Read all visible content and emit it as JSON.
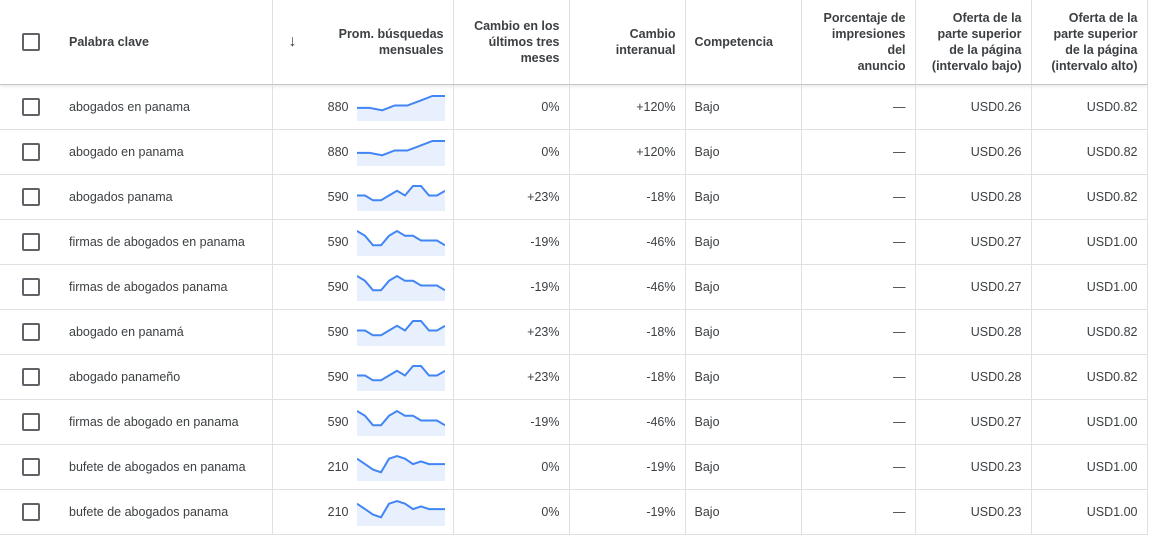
{
  "headers": {
    "keyword": "Palabra clave",
    "avg_searches": [
      "Prom. búsquedas",
      "mensuales"
    ],
    "three_month": [
      "Cambio en los",
      "últimos tres",
      "meses"
    ],
    "yoy": [
      "Cambio",
      "interanual"
    ],
    "competition": "Competencia",
    "impression_share": [
      "Porcentaje de",
      "impresiones del",
      "anuncio"
    ],
    "bid_low": [
      "Oferta de la",
      "parte superior",
      "de la página",
      "(intervalo bajo)"
    ],
    "bid_high": [
      "Oferta de la",
      "parte superior",
      "de la página",
      "(intervalo alto)"
    ]
  },
  "icons": {
    "sort": "arrow-down-icon",
    "checkbox": "checkbox-icon"
  },
  "colors": {
    "sparkline_line": "#4285f4",
    "sparkline_fill": "#e8f0fe"
  },
  "rows": [
    {
      "keyword": "abogados en panama",
      "avg": "880",
      "trend": [
        3,
        3,
        2,
        4,
        4,
        6,
        8,
        8
      ],
      "three_month": "0%",
      "yoy": "+120%",
      "competition": "Bajo",
      "impression_share": "—",
      "bid_low": "USD0.26",
      "bid_high": "USD0.82"
    },
    {
      "keyword": "abogado en panama",
      "avg": "880",
      "trend": [
        3,
        3,
        2,
        4,
        4,
        6,
        8,
        8
      ],
      "three_month": "0%",
      "yoy": "+120%",
      "competition": "Bajo",
      "impression_share": "—",
      "bid_low": "USD0.26",
      "bid_high": "USD0.82"
    },
    {
      "keyword": "abogados panama",
      "avg": "590",
      "trend": [
        4,
        4,
        2,
        2,
        4,
        6,
        4,
        8,
        8,
        4,
        4,
        6
      ],
      "three_month": "+23%",
      "yoy": "-18%",
      "competition": "Bajo",
      "impression_share": "—",
      "bid_low": "USD0.28",
      "bid_high": "USD0.82"
    },
    {
      "keyword": "firmas de abogados en panama",
      "avg": "590",
      "trend": [
        8,
        6,
        2,
        2,
        6,
        8,
        6,
        6,
        4,
        4,
        4,
        2
      ],
      "three_month": "-19%",
      "yoy": "-46%",
      "competition": "Bajo",
      "impression_share": "—",
      "bid_low": "USD0.27",
      "bid_high": "USD1.00"
    },
    {
      "keyword": "firmas de abogados panama",
      "avg": "590",
      "trend": [
        8,
        6,
        2,
        2,
        6,
        8,
        6,
        6,
        4,
        4,
        4,
        2
      ],
      "three_month": "-19%",
      "yoy": "-46%",
      "competition": "Bajo",
      "impression_share": "—",
      "bid_low": "USD0.27",
      "bid_high": "USD1.00"
    },
    {
      "keyword": "abogado en panamá",
      "avg": "590",
      "trend": [
        4,
        4,
        2,
        2,
        4,
        6,
        4,
        8,
        8,
        4,
        4,
        6
      ],
      "three_month": "+23%",
      "yoy": "-18%",
      "competition": "Bajo",
      "impression_share": "—",
      "bid_low": "USD0.28",
      "bid_high": "USD0.82"
    },
    {
      "keyword": "abogado panameño",
      "avg": "590",
      "trend": [
        4,
        4,
        2,
        2,
        4,
        6,
        4,
        8,
        8,
        4,
        4,
        6
      ],
      "three_month": "+23%",
      "yoy": "-18%",
      "competition": "Bajo",
      "impression_share": "—",
      "bid_low": "USD0.28",
      "bid_high": "USD0.82"
    },
    {
      "keyword": "firmas de abogado en panama",
      "avg": "590",
      "trend": [
        8,
        6,
        2,
        2,
        6,
        8,
        6,
        6,
        4,
        4,
        4,
        2
      ],
      "three_month": "-19%",
      "yoy": "-46%",
      "competition": "Bajo",
      "impression_share": "—",
      "bid_low": "USD0.27",
      "bid_high": "USD1.00"
    },
    {
      "keyword": "bufete de abogados en panama",
      "avg": "210",
      "trend": [
        6,
        4,
        2,
        1,
        6,
        7,
        6,
        4,
        5,
        4,
        4,
        4
      ],
      "three_month": "0%",
      "yoy": "-19%",
      "competition": "Bajo",
      "impression_share": "—",
      "bid_low": "USD0.23",
      "bid_high": "USD1.00"
    },
    {
      "keyword": "bufete de abogados panama",
      "avg": "210",
      "trend": [
        6,
        4,
        2,
        1,
        6,
        7,
        6,
        4,
        5,
        4,
        4,
        4
      ],
      "three_month": "0%",
      "yoy": "-19%",
      "competition": "Bajo",
      "impression_share": "—",
      "bid_low": "USD0.23",
      "bid_high": "USD1.00"
    }
  ]
}
